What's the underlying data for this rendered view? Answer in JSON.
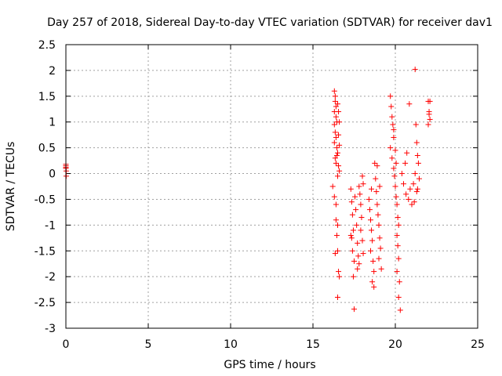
{
  "chart_data": {
    "type": "scatter",
    "title": "Day 257 of 2018, Sidereal Day-to-day VTEC variation (SDTVAR) for receiver dav1",
    "xlabel": "GPS time / hours",
    "ylabel": "SDTVAR / TECUs",
    "xlim": [
      0,
      25
    ],
    "ylim": [
      -3,
      2.5
    ],
    "xticks": [
      0,
      5,
      10,
      15,
      20,
      25
    ],
    "yticks": [
      -3,
      -2.5,
      -2,
      -1.5,
      -1,
      -0.5,
      0,
      0.5,
      1,
      1.5,
      2,
      2.5
    ],
    "xtick_labels": [
      "0",
      "5",
      "10",
      "15",
      "20",
      "25"
    ],
    "ytick_labels": [
      "-3",
      "-2.5",
      "-2",
      "-1.5",
      "-1",
      "-0.5",
      "0",
      "0.5",
      "1",
      "1.5",
      "2",
      "2.5"
    ],
    "grid": true,
    "marker": "+",
    "color": "#ff0000",
    "series": [
      {
        "name": "dav1",
        "points": [
          [
            0.0,
            0.18
          ],
          [
            0.0,
            0.15
          ],
          [
            0.0,
            0.12
          ],
          [
            0.0,
            0.1
          ],
          [
            0.02,
            -0.05
          ],
          [
            0.02,
            0.05
          ],
          [
            16.3,
            1.6
          ],
          [
            16.35,
            1.5
          ],
          [
            16.35,
            1.4
          ],
          [
            16.4,
            1.3
          ],
          [
            16.3,
            1.2
          ],
          [
            16.4,
            1.1
          ],
          [
            16.45,
            1.0
          ],
          [
            16.5,
            1.35
          ],
          [
            16.55,
            1.2
          ],
          [
            16.6,
            1.0
          ],
          [
            16.3,
            0.95
          ],
          [
            16.35,
            0.8
          ],
          [
            16.4,
            0.7
          ],
          [
            16.3,
            0.6
          ],
          [
            16.45,
            0.5
          ],
          [
            16.5,
            0.4
          ],
          [
            16.35,
            0.3
          ],
          [
            16.4,
            0.2
          ],
          [
            16.55,
            0.15
          ],
          [
            16.6,
            0.05
          ],
          [
            16.5,
            -0.05
          ],
          [
            16.6,
            0.55
          ],
          [
            16.45,
            0.35
          ],
          [
            16.55,
            0.75
          ],
          [
            16.2,
            -0.25
          ],
          [
            16.3,
            -0.45
          ],
          [
            16.4,
            -0.9
          ],
          [
            16.45,
            -1.2
          ],
          [
            16.5,
            -1.5
          ],
          [
            16.55,
            -1.9
          ],
          [
            16.6,
            -2.0
          ],
          [
            16.5,
            -2.4
          ],
          [
            16.4,
            -0.6
          ],
          [
            16.35,
            -1.55
          ],
          [
            16.5,
            -1.0
          ],
          [
            17.3,
            -0.3
          ],
          [
            17.35,
            -0.55
          ],
          [
            17.4,
            -0.8
          ],
          [
            17.45,
            -1.1
          ],
          [
            17.35,
            -1.25
          ],
          [
            17.4,
            -1.5
          ],
          [
            17.5,
            -1.7
          ],
          [
            17.45,
            -2.0
          ],
          [
            17.3,
            -1.2
          ],
          [
            17.55,
            -0.45
          ],
          [
            17.6,
            -0.7
          ],
          [
            17.65,
            -1.0
          ],
          [
            17.7,
            -1.35
          ],
          [
            17.75,
            -1.6
          ],
          [
            17.7,
            -1.85
          ],
          [
            17.8,
            -0.25
          ],
          [
            17.85,
            -0.4
          ],
          [
            17.9,
            -0.6
          ],
          [
            17.95,
            -0.85
          ],
          [
            17.9,
            -1.1
          ],
          [
            18.0,
            -1.3
          ],
          [
            18.05,
            -1.55
          ],
          [
            17.8,
            -1.75
          ],
          [
            17.5,
            -2.63
          ],
          [
            18.0,
            -0.05
          ],
          [
            18.05,
            -0.2
          ],
          [
            18.4,
            -0.5
          ],
          [
            18.45,
            -0.7
          ],
          [
            18.5,
            -0.9
          ],
          [
            18.55,
            -1.1
          ],
          [
            18.6,
            -1.3
          ],
          [
            18.5,
            -1.5
          ],
          [
            18.65,
            -1.7
          ],
          [
            18.7,
            -1.9
          ],
          [
            18.6,
            -2.1
          ],
          [
            18.7,
            -2.2
          ],
          [
            18.55,
            -0.3
          ],
          [
            18.8,
            -0.1
          ],
          [
            18.85,
            -0.35
          ],
          [
            18.9,
            -0.6
          ],
          [
            18.95,
            -0.8
          ],
          [
            19.0,
            -1.0
          ],
          [
            19.05,
            -1.25
          ],
          [
            19.1,
            -1.45
          ],
          [
            19.0,
            -1.65
          ],
          [
            19.15,
            -1.85
          ],
          [
            18.75,
            0.2
          ],
          [
            18.9,
            0.15
          ],
          [
            19.05,
            -0.25
          ],
          [
            19.7,
            1.5
          ],
          [
            19.75,
            1.3
          ],
          [
            19.8,
            1.1
          ],
          [
            19.85,
            0.95
          ],
          [
            19.9,
            0.7
          ],
          [
            19.7,
            0.5
          ],
          [
            19.8,
            0.3
          ],
          [
            19.9,
            0.1
          ],
          [
            19.95,
            -0.05
          ],
          [
            20.0,
            -0.25
          ],
          [
            20.05,
            -0.45
          ],
          [
            20.1,
            -0.6
          ],
          [
            20.15,
            -0.85
          ],
          [
            20.2,
            -1.0
          ],
          [
            20.1,
            -1.2
          ],
          [
            20.15,
            -1.4
          ],
          [
            20.2,
            -1.65
          ],
          [
            20.1,
            -1.9
          ],
          [
            20.25,
            -2.1
          ],
          [
            20.2,
            -2.4
          ],
          [
            20.3,
            -2.65
          ],
          [
            20.0,
            0.45
          ],
          [
            19.9,
            0.85
          ],
          [
            20.05,
            0.2
          ],
          [
            20.4,
            0.0
          ],
          [
            20.5,
            -0.2
          ],
          [
            20.6,
            0.2
          ],
          [
            20.7,
            0.4
          ],
          [
            20.65,
            -0.4
          ],
          [
            20.8,
            -0.5
          ],
          [
            20.9,
            -0.3
          ],
          [
            21.0,
            -0.6
          ],
          [
            21.1,
            -0.2
          ],
          [
            21.2,
            0.0
          ],
          [
            21.15,
            -0.55
          ],
          [
            21.3,
            -0.35
          ],
          [
            21.25,
            0.95
          ],
          [
            21.3,
            0.6
          ],
          [
            21.35,
            0.35
          ],
          [
            21.4,
            0.2
          ],
          [
            21.45,
            -0.1
          ],
          [
            21.35,
            -0.3
          ],
          [
            20.85,
            1.35
          ],
          [
            21.2,
            2.02
          ],
          [
            22.0,
            1.4
          ],
          [
            22.05,
            1.2
          ],
          [
            22.1,
            1.05
          ],
          [
            22.0,
            0.95
          ],
          [
            22.1,
            1.4
          ],
          [
            22.05,
            1.15
          ]
        ]
      }
    ]
  }
}
